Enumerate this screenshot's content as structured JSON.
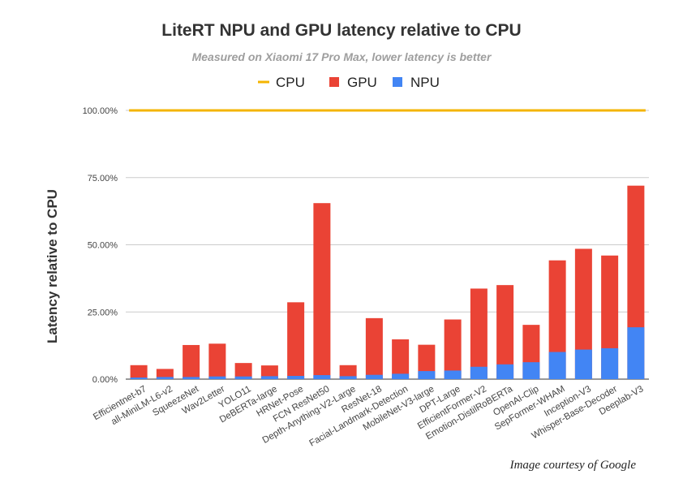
{
  "chart_data": {
    "type": "bar",
    "title": "LiteRT NPU and GPU latency relative to CPU",
    "subtitle": "Measured on Xiaomi 17 Pro Max, lower latency is better",
    "ylabel": "Latency relative to CPU",
    "xlabel": "",
    "ylim": [
      0,
      100
    ],
    "yticks": [
      "0.00%",
      "25.00%",
      "50.00%",
      "75.00%",
      "100.00%"
    ],
    "legend_position": "top",
    "stacked": true,
    "categories": [
      "Efficientnet-b7",
      "all-MiniLM-L6-v2",
      "SqueezeNet",
      "Wav2Letter",
      "YOLO11",
      "DeBERTa-large",
      "HRNet-Pose",
      "FCN ResNet50",
      "Depth-Anything-V2-Large",
      "ResNet-18",
      "Facial-Landmark-Detection",
      "MobileNet-V3-large",
      "DPT-Large",
      "EfficientFormer-V2",
      "Emotion-DistilRoBERTa",
      "OpenAI-Clip",
      "SepFormer-WHAM",
      "Inception-V3",
      "Whisper-Base-Decoder",
      "Deeplab-V3"
    ],
    "series": [
      {
        "name": "CPU",
        "type": "line",
        "color": "#f4b400",
        "values": [
          100,
          100,
          100,
          100,
          100,
          100,
          100,
          100,
          100,
          100,
          100,
          100,
          100,
          100,
          100,
          100,
          100,
          100,
          100,
          100
        ]
      },
      {
        "name": "GPU",
        "type": "bar",
        "color": "#ea4335",
        "values": [
          5.2,
          3.8,
          12.7,
          13.2,
          6.0,
          5.1,
          28.6,
          65.5,
          5.2,
          22.7,
          14.8,
          12.8,
          22.2,
          33.7,
          35.0,
          20.2,
          44.2,
          48.5,
          46.0,
          72.0
        ]
      },
      {
        "name": "NPU",
        "type": "bar",
        "color": "#4285f4",
        "values": [
          0.6,
          0.8,
          0.8,
          1.0,
          1.0,
          1.1,
          1.2,
          1.5,
          1.1,
          1.6,
          2.0,
          3.0,
          3.2,
          4.6,
          5.5,
          6.3,
          10.1,
          11.0,
          11.5,
          19.3
        ]
      }
    ]
  },
  "credit": "Image courtesy of Google"
}
